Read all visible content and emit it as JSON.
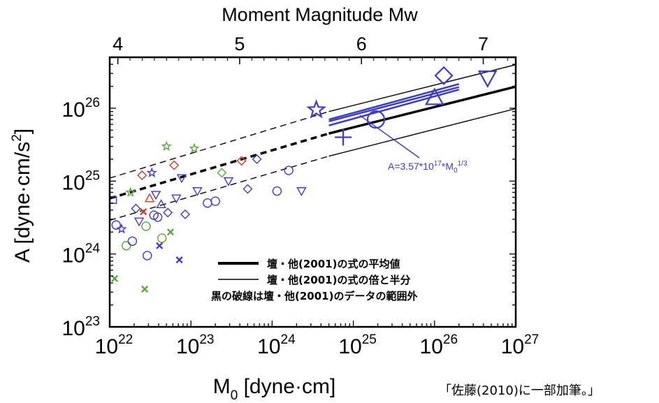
{
  "chart_data": {
    "type": "scatter",
    "x_scale": "log",
    "y_scale": "log",
    "xlim": [
      1e+22,
      1e+27
    ],
    "ylim": [
      1e+23,
      5e+26
    ],
    "xlabel_main": "M",
    "xlabel_sub": "0",
    "xlabel_rest": " [dyne·cm]",
    "ylabel_main": "A [dyne·cm/s",
    "ylabel_sup": "2",
    "ylabel_end": "]",
    "x_tick_base": "10",
    "x_ticks": [
      {
        "value": 1e+22,
        "exp": "22"
      },
      {
        "value": 1e+23,
        "exp": "23"
      },
      {
        "value": 1e+24,
        "exp": "24"
      },
      {
        "value": 1e+25,
        "exp": "25"
      },
      {
        "value": 1e+26,
        "exp": "26"
      },
      {
        "value": 1e+27,
        "exp": "27"
      }
    ],
    "y_tick_base": "10",
    "y_ticks": [
      {
        "value": 1e+23,
        "exp": "23"
      },
      {
        "value": 1e+24,
        "exp": "24"
      },
      {
        "value": 1e+25,
        "exp": "25"
      },
      {
        "value": 1e+26,
        "exp": "26"
      }
    ],
    "top_axis_title": "Moment Magnitude Mw",
    "top_ticks": [
      {
        "mw": 4,
        "label": "4"
      },
      {
        "mw": 5,
        "label": "5"
      },
      {
        "mw": 6,
        "label": "6"
      },
      {
        "mw": 7,
        "label": "7"
      }
    ],
    "lines": [
      {
        "kind": "mean",
        "style": "thick",
        "points": [
          [
            1e+22,
            5.8e+24
          ],
          [
            5e+24,
            4.5e+25
          ],
          [
            2e+27,
            2.4e+26
          ]
        ],
        "solid_from": 5e+24,
        "dashed_before": true
      },
      {
        "kind": "double",
        "style": "thin",
        "points": [
          [
            1e+22,
            1.1e+25
          ],
          [
            5e+24,
            9e+25
          ],
          [
            2e+27,
            4.8e+26
          ]
        ],
        "solid_from": 5e+24,
        "dashed_before": true
      },
      {
        "kind": "half",
        "style": "thin",
        "points": [
          [
            1e+22,
            2.9e+24
          ],
          [
            5e+24,
            2.2e+25
          ],
          [
            2e+27,
            1.2e+26
          ]
        ],
        "solid_from": 5e+24,
        "dashed_before": true
      },
      {
        "kind": "fit",
        "style": "blue",
        "points": [
          [
            5e+24,
            7e+25
          ],
          [
            2e+26,
            2.15e+26
          ]
        ]
      },
      {
        "kind": "fit",
        "style": "blue",
        "points": [
          [
            5e+24,
            5.8e+25
          ],
          [
            2e+26,
            1.8e+26
          ]
        ]
      },
      {
        "kind": "fit",
        "style": "blue",
        "points": [
          [
            5e+24,
            6.6e+25
          ],
          [
            2e+26,
            1.95e+26
          ]
        ]
      }
    ],
    "annotation": {
      "text_pre": "A=3.57*10",
      "text_exp": "17",
      "text_mid": "*M",
      "text_sub": "0",
      "text_post_sup": "1/3",
      "color": "#3c3cc8",
      "arrow_to": [
        1.2e+25,
        8e+25
      ]
    },
    "legend": {
      "position": "lower-right",
      "items": [
        {
          "style": "thick",
          "label": "壇・他(2001)の式の平均値"
        },
        {
          "style": "thin",
          "label": "壇・他(2001)の式の倍と半分"
        },
        {
          "style": "none",
          "label": "黒の破線は壇・他(2001)のデータの範囲外"
        }
      ]
    },
    "colors": {
      "blue": "#3c3cc8",
      "green": "#5aa83c",
      "red": "#d23c28",
      "black": "#000000"
    },
    "points": [
      {
        "x": 3.5e+24,
        "y": 9.5e+25,
        "m": "star",
        "c": "blue",
        "big": true
      },
      {
        "x": 7.5e+24,
        "y": 4e+25,
        "m": "plus",
        "c": "blue",
        "big": true
      },
      {
        "x": 1.9e+25,
        "y": 7e+25,
        "m": "circle",
        "c": "blue",
        "big": true
      },
      {
        "x": 1e+26,
        "y": 1.4e+26,
        "m": "triangle",
        "c": "blue",
        "big": true
      },
      {
        "x": 1.3e+26,
        "y": 2.8e+26,
        "m": "diamond",
        "c": "blue",
        "big": true
      },
      {
        "x": 4.5e+26,
        "y": 2.6e+26,
        "m": "invtri",
        "c": "blue",
        "big": true
      },
      {
        "x": 1.1e+22,
        "y": 5.5e+24,
        "m": "square",
        "c": "blue"
      },
      {
        "x": 1.2e+22,
        "y": 2.5e+24,
        "m": "circle",
        "c": "blue"
      },
      {
        "x": 1.4e+22,
        "y": 2.2e+24,
        "m": "star",
        "c": "blue"
      },
      {
        "x": 1.6e+22,
        "y": 1.3e+24,
        "m": "circle",
        "c": "green"
      },
      {
        "x": 1.8e+22,
        "y": 7e+24,
        "m": "star",
        "c": "green"
      },
      {
        "x": 1.9e+22,
        "y": 1.5e+24,
        "m": "circle",
        "c": "blue"
      },
      {
        "x": 2.1e+22,
        "y": 4.2e+24,
        "m": "diamond",
        "c": "blue"
      },
      {
        "x": 2.3e+22,
        "y": 2.8e+24,
        "m": "invtri",
        "c": "blue"
      },
      {
        "x": 2.5e+22,
        "y": 1.2e+25,
        "m": "diamond",
        "c": "red"
      },
      {
        "x": 2.6e+22,
        "y": 3.8e+24,
        "m": "x",
        "c": "red"
      },
      {
        "x": 2.8e+22,
        "y": 2.4e+24,
        "m": "circle",
        "c": "green"
      },
      {
        "x": 2.9e+22,
        "y": 9.5e+23,
        "m": "circle",
        "c": "blue"
      },
      {
        "x": 3.1e+22,
        "y": 5.8e+24,
        "m": "triangle",
        "c": "red"
      },
      {
        "x": 3.3e+22,
        "y": 1.3e+25,
        "m": "star",
        "c": "blue"
      },
      {
        "x": 3.5e+22,
        "y": 3.4e+24,
        "m": "circle",
        "c": "blue"
      },
      {
        "x": 3.7e+22,
        "y": 6.5e+24,
        "m": "invtri",
        "c": "blue"
      },
      {
        "x": 3.9e+22,
        "y": 3.2e+24,
        "m": "circle",
        "c": "blue"
      },
      {
        "x": 4.1e+22,
        "y": 1.3e+24,
        "m": "x",
        "c": "blue"
      },
      {
        "x": 4.3e+22,
        "y": 4.8e+24,
        "m": "triangle",
        "c": "blue"
      },
      {
        "x": 4.4e+22,
        "y": 1.65e+24,
        "m": "circle",
        "c": "green"
      },
      {
        "x": 5e+22,
        "y": 3e+25,
        "m": "star",
        "c": "green"
      },
      {
        "x": 5.2e+22,
        "y": 3.7e+24,
        "m": "diamond",
        "c": "blue"
      },
      {
        "x": 5.6e+22,
        "y": 2e+24,
        "m": "x",
        "c": "green"
      },
      {
        "x": 6.2e+22,
        "y": 1.65e+25,
        "m": "diamond",
        "c": "red"
      },
      {
        "x": 6.6e+22,
        "y": 5.8e+24,
        "m": "invtri",
        "c": "blue"
      },
      {
        "x": 7.2e+22,
        "y": 8.3e+23,
        "m": "x",
        "c": "blue"
      },
      {
        "x": 7.7e+22,
        "y": 1.1e+25,
        "m": "invtri",
        "c": "blue"
      },
      {
        "x": 8.5e+22,
        "y": 3.5e+24,
        "m": "diamond",
        "c": "blue"
      },
      {
        "x": 1.1e+23,
        "y": 2.8e+25,
        "m": "star",
        "c": "green"
      },
      {
        "x": 1.2e+23,
        "y": 7.3e+24,
        "m": "invtri",
        "c": "blue"
      },
      {
        "x": 1.6e+23,
        "y": 5e+24,
        "m": "circle",
        "c": "blue"
      },
      {
        "x": 2e+23,
        "y": 5.3e+24,
        "m": "circle",
        "c": "blue"
      },
      {
        "x": 2.4e+23,
        "y": 1.3e+25,
        "m": "diamond",
        "c": "green"
      },
      {
        "x": 2.9e+23,
        "y": 1e+25,
        "m": "invtri",
        "c": "blue"
      },
      {
        "x": 4.2e+23,
        "y": 1.9e+25,
        "m": "diamond",
        "c": "red"
      },
      {
        "x": 5e+23,
        "y": 7.8e+24,
        "m": "diamond",
        "c": "blue"
      },
      {
        "x": 6.5e+23,
        "y": 2e+25,
        "m": "diamond",
        "c": "blue"
      },
      {
        "x": 1.15e+24,
        "y": 7.3e+24,
        "m": "circle",
        "c": "blue"
      },
      {
        "x": 1.6e+24,
        "y": 1.4e+25,
        "m": "circle",
        "c": "blue"
      },
      {
        "x": 2.3e+24,
        "y": 7.3e+24,
        "m": "invtri",
        "c": "blue"
      },
      {
        "x": 1.15e+22,
        "y": 4.6e+23,
        "m": "x",
        "c": "green"
      },
      {
        "x": 2.7e+22,
        "y": 3.3e+23,
        "m": "x",
        "c": "green"
      }
    ]
  },
  "note": "「佐藤(2010)に一部加筆。」"
}
